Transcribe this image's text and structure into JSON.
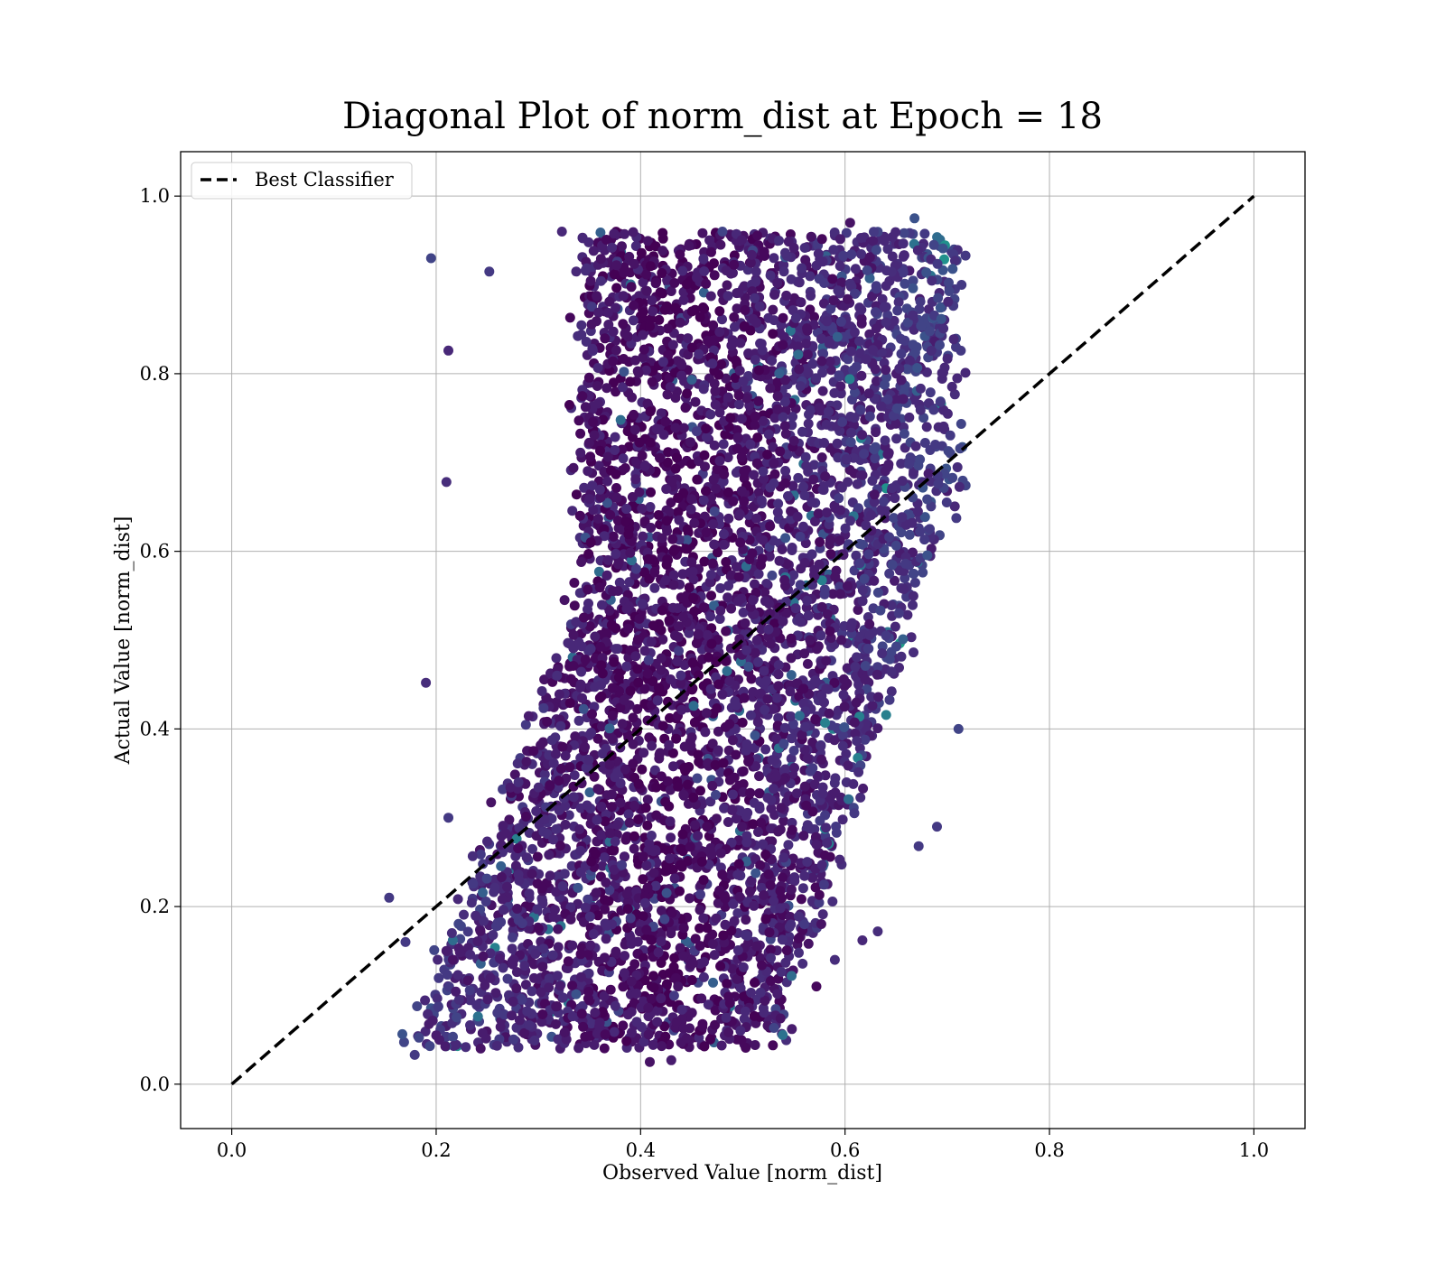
{
  "chart_data": {
    "type": "scatter",
    "title": "Diagonal Plot of norm_dist at Epoch = 18",
    "xlabel": "Observed Value [norm_dist]",
    "ylabel": "Actual Value [norm_dist]",
    "xlim": [
      -0.05,
      1.05
    ],
    "ylim": [
      -0.05,
      1.05
    ],
    "xticks": [
      0.0,
      0.2,
      0.4,
      0.6,
      0.8,
      1.0
    ],
    "yticks": [
      0.0,
      0.2,
      0.4,
      0.6,
      0.8,
      1.0
    ],
    "xtick_labels": [
      "0.0",
      "0.2",
      "0.4",
      "0.6",
      "0.8",
      "1.0"
    ],
    "ytick_labels": [
      "0.0",
      "0.2",
      "0.4",
      "0.6",
      "0.8",
      "1.0"
    ],
    "grid": true,
    "colormap": "viridis",
    "legend": {
      "placement": "top-left",
      "entries": [
        {
          "label": "Best Classifier",
          "style": "dashed",
          "color": "#000000"
        }
      ]
    },
    "reference_line": {
      "label": "Best Classifier",
      "x": [
        0.0,
        1.0
      ],
      "y": [
        0.0,
        1.0
      ],
      "style": "dashed",
      "color": "#000000"
    },
    "scatter_extent": {
      "x_range": [
        0.15,
        0.72
      ],
      "y_range": [
        0.02,
        0.98
      ],
      "dominant_colors": [
        "#440154",
        "#472d7b",
        "#3b528b",
        "#2c728e",
        "#21918c",
        "#28ae80",
        "#5ec962"
      ]
    },
    "series": [
      {
        "name": "",
        "points_sample": [
          [
            0.195,
            0.93
          ],
          [
            0.252,
            0.915
          ],
          [
            0.212,
            0.826
          ],
          [
            0.21,
            0.678
          ],
          [
            0.19,
            0.452
          ],
          [
            0.323,
            0.96
          ],
          [
            0.48,
            0.96
          ],
          [
            0.668,
            0.975
          ],
          [
            0.605,
            0.97
          ],
          [
            0.714,
            0.9
          ],
          [
            0.711,
            0.4
          ],
          [
            0.69,
            0.29
          ],
          [
            0.672,
            0.268
          ],
          [
            0.632,
            0.172
          ],
          [
            0.617,
            0.162
          ],
          [
            0.548,
            0.062
          ],
          [
            0.512,
            0.044
          ],
          [
            0.409,
            0.025
          ],
          [
            0.43,
            0.027
          ],
          [
            0.154,
            0.21
          ],
          [
            0.17,
            0.16
          ],
          [
            0.179,
            0.033
          ],
          [
            0.2,
            0.055
          ],
          [
            0.572,
            0.11
          ],
          [
            0.59,
            0.14
          ],
          [
            0.4,
            0.333
          ],
          [
            0.398,
            0.338
          ],
          [
            0.212,
            0.3
          ],
          [
            0.61,
            0.47
          ],
          [
            0.51,
            0.545
          ],
          [
            0.52,
            0.69
          ],
          [
            0.68,
            0.74
          ]
        ]
      }
    ]
  }
}
